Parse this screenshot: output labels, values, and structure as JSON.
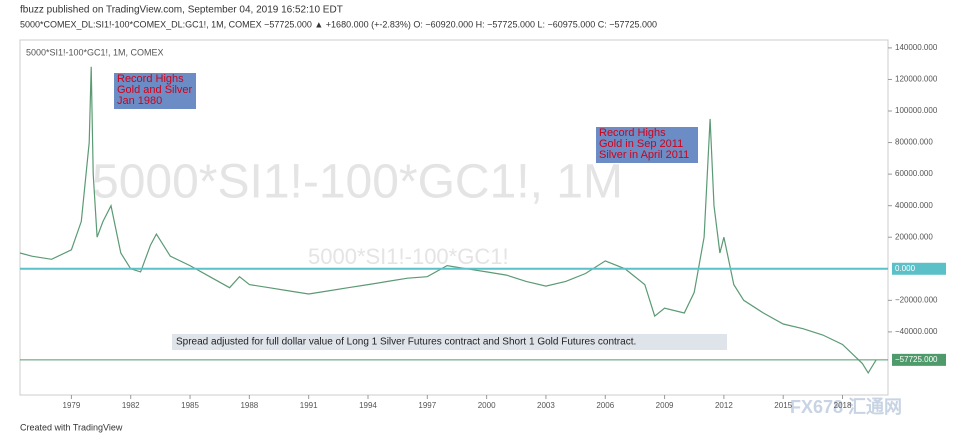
{
  "chart_data": {
    "type": "line",
    "header": "fbuzz published on TradingView.com, September 04, 2019 16:52:10 EDT",
    "ticker_line": "5000*COMEX_DL:SI1!-100*COMEX_DL:GC1!, 1M, COMEX  −57725.000 ▲ +1680.000 (+-2.83%)  O: −60920.000  H: −57725.000  L: −60975.000  C: −57725.000",
    "legend_text": "5000*SI1!-100*GC1!, 1M, COMEX",
    "watermark": "5000*SI1!-100*GC1!, 1M",
    "watermark_small": "5000*SI1!-100*GC1!",
    "annotations": [
      [
        "Record Highs",
        "Gold and Silver",
        "Jan 1980"
      ],
      [
        "Record Highs",
        "Gold in Sep 2011",
        "Silver in April 2011"
      ]
    ],
    "note": "Spread adjusted for full dollar value of Long 1 Silver Futures contract and Short 1 Gold Futures contract.",
    "footer": "Created with TradingView",
    "corner_mark": "FX678 汇通网",
    "color": "#5b9a74",
    "x": [
      1976.4,
      1977,
      1978,
      1979,
      1979.5,
      1979.9,
      1980.0,
      1980.1,
      1980.3,
      1980.6,
      1981,
      1981.5,
      1982,
      1982.5,
      1983,
      1983.3,
      1984,
      1985,
      1986,
      1987,
      1987.5,
      1988,
      1989,
      1990,
      1991,
      1992,
      1993,
      1994,
      1995,
      1996,
      1997,
      1998,
      1999,
      2000,
      2001,
      2002,
      2003,
      2004,
      2005,
      2006,
      2007,
      2008,
      2008.5,
      2009,
      2010,
      2010.5,
      2011.0,
      2011.3,
      2011.5,
      2011.8,
      2012,
      2012.5,
      2013,
      2014,
      2015,
      2016,
      2017,
      2018,
      2019.0,
      2019.3,
      2019.7
    ],
    "values": [
      10000,
      8000,
      6000,
      12000,
      30000,
      80000,
      128000,
      60000,
      20000,
      30000,
      40000,
      10000,
      0,
      -2000,
      15000,
      22000,
      8000,
      2000,
      -5000,
      -12000,
      -5000,
      -10000,
      -12000,
      -14000,
      -16000,
      -14000,
      -12000,
      -10000,
      -8000,
      -6000,
      -5000,
      2000,
      0,
      -2000,
      -4000,
      -8000,
      -11000,
      -8000,
      -3000,
      5000,
      0,
      -10000,
      -30000,
      -25000,
      -28000,
      -15000,
      20000,
      95000,
      40000,
      10000,
      20000,
      -10000,
      -20000,
      -28000,
      -35000,
      -38000,
      -42000,
      -48000,
      -60000,
      -66000,
      -57725
    ],
    "xlim": [
      1976.4,
      2020.3
    ],
    "xticks": [
      1979,
      1982,
      1985,
      1988,
      1991,
      1994,
      1997,
      2000,
      2003,
      2006,
      2009,
      2012,
      2015,
      2018
    ],
    "ylim": [
      -80000,
      145000
    ],
    "yticks": [
      {
        "value": 140000,
        "label": "140000.000"
      },
      {
        "value": 120000,
        "label": "120000.000"
      },
      {
        "value": 100000,
        "label": "100000.000"
      },
      {
        "value": 80000,
        "label": "80000.000"
      },
      {
        "value": 60000,
        "label": "60000.000"
      },
      {
        "value": 40000,
        "label": "40000.000"
      },
      {
        "value": 20000,
        "label": "20000.000"
      },
      {
        "value": -20000,
        "label": "−20000.000"
      },
      {
        "value": -40000,
        "label": "−40000.000"
      }
    ],
    "zero_line": {
      "value": 0,
      "label": "0.000",
      "color": "#5bc0c8"
    },
    "last_price": {
      "value": -57725,
      "label": "−57725.000",
      "color": "#4f9a6a"
    }
  }
}
